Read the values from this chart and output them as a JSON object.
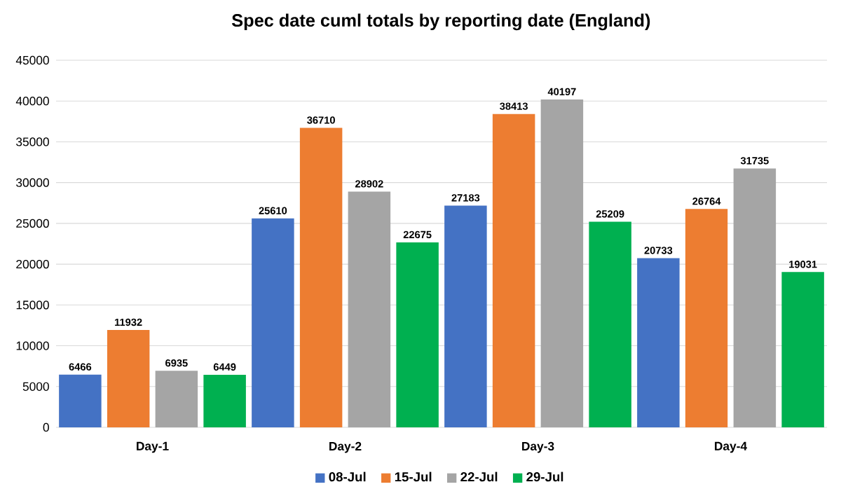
{
  "chart_data": {
    "type": "bar",
    "title": "Spec date cuml totals by reporting date (England)",
    "categories": [
      "Day-1",
      "Day-2",
      "Day-3",
      "Day-4"
    ],
    "series": [
      {
        "name": "08-Jul",
        "color": "#4472c4",
        "values": [
          6466,
          25610,
          27183,
          20733
        ]
      },
      {
        "name": "15-Jul",
        "color": "#ed7d31",
        "values": [
          11932,
          36710,
          38413,
          26764
        ]
      },
      {
        "name": "22-Jul",
        "color": "#a5a5a5",
        "values": [
          6935,
          28902,
          40197,
          31735
        ]
      },
      {
        "name": "29-Jul",
        "color": "#00b050",
        "values": [
          6449,
          22675,
          25209,
          19031
        ]
      }
    ],
    "ylim": [
      0,
      45000
    ],
    "yticks": [
      0,
      5000,
      10000,
      15000,
      20000,
      25000,
      30000,
      35000,
      40000,
      45000
    ],
    "grid": "y",
    "legend": "bottom",
    "data_labels": true
  }
}
